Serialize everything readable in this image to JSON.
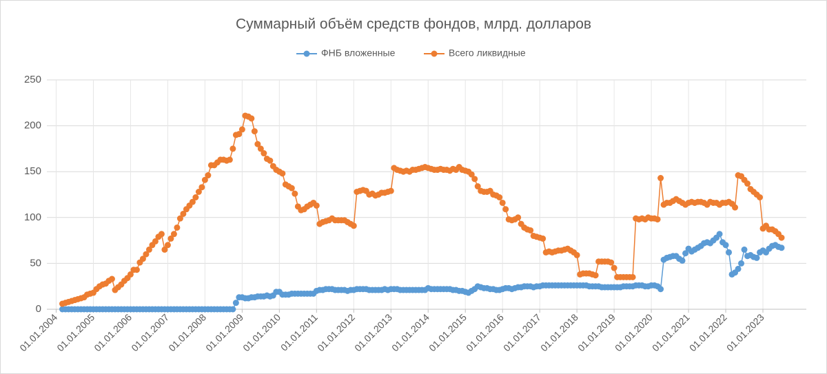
{
  "chart_data": {
    "type": "line",
    "title": "Суммарный объём средств фондов, млрд. долларов",
    "x": [
      "01.03.2004",
      "01.04.2004",
      "01.05.2004",
      "01.06.2004",
      "01.07.2004",
      "01.08.2004",
      "01.09.2004",
      "01.10.2004",
      "01.11.2004",
      "01.12.2004",
      "01.01.2005",
      "01.02.2005",
      "01.03.2005",
      "01.04.2005",
      "01.05.2005",
      "01.06.2005",
      "01.07.2005",
      "01.08.2005",
      "01.09.2005",
      "01.10.2005",
      "01.11.2005",
      "01.12.2005",
      "01.01.2006",
      "01.02.2006",
      "01.03.2006",
      "01.04.2006",
      "01.05.2006",
      "01.06.2006",
      "01.07.2006",
      "01.08.2006",
      "01.09.2006",
      "01.10.2006",
      "01.11.2006",
      "01.12.2006",
      "01.01.2007",
      "01.02.2007",
      "01.03.2007",
      "01.04.2007",
      "01.05.2007",
      "01.06.2007",
      "01.07.2007",
      "01.08.2007",
      "01.09.2007",
      "01.10.2007",
      "01.11.2007",
      "01.12.2007",
      "01.01.2008",
      "01.02.2008",
      "01.03.2008",
      "01.04.2008",
      "01.05.2008",
      "01.06.2008",
      "01.07.2008",
      "01.08.2008",
      "01.09.2008",
      "01.10.2008",
      "01.11.2008",
      "01.12.2008",
      "01.01.2009",
      "01.02.2009",
      "01.03.2009",
      "01.04.2009",
      "01.05.2009",
      "01.06.2009",
      "01.07.2009",
      "01.08.2009",
      "01.09.2009",
      "01.10.2009",
      "01.11.2009",
      "01.12.2009",
      "01.01.2010",
      "01.02.2010",
      "01.03.2010",
      "01.04.2010",
      "01.05.2010",
      "01.06.2010",
      "01.07.2010",
      "01.08.2010",
      "01.09.2010",
      "01.10.2010",
      "01.11.2010",
      "01.12.2010",
      "01.01.2011",
      "01.02.2011",
      "01.03.2011",
      "01.04.2011",
      "01.05.2011",
      "01.06.2011",
      "01.07.2011",
      "01.08.2011",
      "01.09.2011",
      "01.10.2011",
      "01.11.2011",
      "01.12.2011",
      "01.01.2012",
      "01.02.2012",
      "01.03.2012",
      "01.04.2012",
      "01.05.2012",
      "01.06.2012",
      "01.07.2012",
      "01.08.2012",
      "01.09.2012",
      "01.10.2012",
      "01.11.2012",
      "01.12.2012",
      "01.01.2013",
      "01.02.2013",
      "01.03.2013",
      "01.04.2013",
      "01.05.2013",
      "01.06.2013",
      "01.07.2013",
      "01.08.2013",
      "01.09.2013",
      "01.10.2013",
      "01.11.2013",
      "01.12.2013",
      "01.01.2014",
      "01.02.2014",
      "01.03.2014",
      "01.04.2014",
      "01.05.2014",
      "01.06.2014",
      "01.07.2014",
      "01.08.2014",
      "01.09.2014",
      "01.10.2014",
      "01.11.2014",
      "01.12.2014",
      "01.01.2015",
      "01.02.2015",
      "01.03.2015",
      "01.04.2015",
      "01.05.2015",
      "01.06.2015",
      "01.07.2015",
      "01.08.2015",
      "01.09.2015",
      "01.10.2015",
      "01.11.2015",
      "01.12.2015",
      "01.01.2016",
      "01.02.2016",
      "01.03.2016",
      "01.04.2016",
      "01.05.2016",
      "01.06.2016",
      "01.07.2016",
      "01.08.2016",
      "01.09.2016",
      "01.10.2016",
      "01.11.2016",
      "01.12.2016",
      "01.01.2017",
      "01.02.2017",
      "01.03.2017",
      "01.04.2017",
      "01.05.2017",
      "01.06.2017",
      "01.07.2017",
      "01.08.2017",
      "01.09.2017",
      "01.10.2017",
      "01.11.2017",
      "01.12.2017",
      "01.01.2018",
      "01.02.2018",
      "01.03.2018",
      "01.04.2018",
      "01.05.2018",
      "01.06.2018",
      "01.07.2018",
      "01.08.2018",
      "01.09.2018",
      "01.10.2018",
      "01.11.2018",
      "01.12.2018",
      "01.01.2019",
      "01.02.2019",
      "01.03.2019",
      "01.04.2019",
      "01.05.2019",
      "01.06.2019",
      "01.07.2019",
      "01.08.2019",
      "01.09.2019",
      "01.10.2019",
      "01.11.2019",
      "01.12.2019",
      "01.01.2020",
      "01.02.2020",
      "01.03.2020",
      "01.04.2020",
      "01.05.2020",
      "01.06.2020",
      "01.07.2020",
      "01.08.2020",
      "01.09.2020",
      "01.10.2020",
      "01.11.2020",
      "01.12.2020",
      "01.01.2021",
      "01.02.2021",
      "01.03.2021",
      "01.04.2021",
      "01.05.2021",
      "01.06.2021",
      "01.07.2021",
      "01.08.2021",
      "01.09.2021",
      "01.10.2021",
      "01.11.2021",
      "01.12.2021",
      "01.01.2022",
      "01.02.2022",
      "01.03.2022",
      "01.04.2022",
      "01.05.2022",
      "01.06.2022",
      "01.07.2022",
      "01.08.2022",
      "01.09.2022",
      "01.10.2022",
      "01.11.2022",
      "01.12.2022",
      "01.01.2023",
      "01.02.2023",
      "01.03.2023",
      "01.04.2023",
      "01.05.2023",
      "01.06.2023",
      "01.07.2023"
    ],
    "series": [
      {
        "name": "ФНБ вложенные",
        "color": "#5b9bd5",
        "values": [
          0,
          0,
          0,
          0,
          0,
          0,
          0,
          0,
          0,
          0,
          0,
          0,
          0,
          0,
          0,
          0,
          0,
          0,
          0,
          0,
          0,
          0,
          0,
          0,
          0,
          0,
          0,
          0,
          0,
          0,
          0,
          0,
          0,
          0,
          0,
          0,
          0,
          0,
          0,
          0,
          0,
          0,
          0,
          0,
          0,
          0,
          0,
          0,
          0,
          0,
          0,
          0,
          0,
          0,
          0,
          0,
          7,
          13,
          13,
          12,
          12,
          13,
          13,
          14,
          14,
          14,
          15,
          14,
          15,
          19,
          19,
          16,
          16,
          16,
          17,
          17,
          17,
          17,
          17,
          17,
          17,
          17,
          20,
          21,
          21,
          22,
          22,
          22,
          21,
          21,
          21,
          21,
          20,
          21,
          21,
          22,
          22,
          22,
          22,
          21,
          21,
          21,
          21,
          21,
          22,
          21,
          22,
          22,
          22,
          21,
          21,
          21,
          21,
          21,
          21,
          21,
          21,
          21,
          23,
          22,
          22,
          22,
          22,
          22,
          22,
          22,
          21,
          21,
          20,
          20,
          19,
          18,
          20,
          22,
          25,
          24,
          23,
          23,
          22,
          22,
          21,
          21,
          22,
          23,
          23,
          22,
          23,
          24,
          24,
          25,
          25,
          25,
          24,
          25,
          25,
          26,
          26,
          26,
          26,
          26,
          26,
          26,
          26,
          26,
          26,
          26,
          26,
          26,
          26,
          26,
          25,
          25,
          25,
          25,
          24,
          24,
          24,
          24,
          24,
          24,
          24,
          25,
          25,
          25,
          25,
          26,
          26,
          26,
          25,
          25,
          26,
          26,
          25,
          22,
          54,
          56,
          57,
          58,
          58,
          55,
          53,
          61,
          66,
          63,
          65,
          67,
          69,
          72,
          73,
          72,
          75,
          78,
          82,
          73,
          70,
          62,
          38,
          40,
          44,
          50,
          65,
          58,
          59,
          57,
          56,
          62,
          64,
          62,
          66,
          69,
          70,
          68,
          67
        ]
      },
      {
        "name": "Всего ликвидные",
        "color": "#ed7d31",
        "values": [
          6,
          7,
          8,
          9,
          10,
          11,
          12,
          13,
          16,
          17,
          18,
          22,
          25,
          27,
          28,
          31,
          33,
          21,
          24,
          27,
          31,
          34,
          38,
          43,
          43,
          51,
          55,
          60,
          65,
          70,
          74,
          79,
          82,
          65,
          70,
          77,
          82,
          89,
          99,
          104,
          109,
          113,
          117,
          122,
          128,
          133,
          141,
          146,
          157,
          157,
          160,
          163,
          163,
          162,
          163,
          175,
          190,
          191,
          196,
          211,
          210,
          208,
          194,
          180,
          175,
          170,
          164,
          162,
          156,
          152,
          150,
          148,
          136,
          134,
          132,
          126,
          112,
          108,
          109,
          112,
          114,
          116,
          113,
          93,
          95,
          96,
          97,
          99,
          97,
          97,
          97,
          97,
          95,
          93,
          91,
          128,
          129,
          130,
          129,
          125,
          126,
          124,
          125,
          127,
          127,
          128,
          129,
          154,
          152,
          151,
          150,
          151,
          150,
          152,
          152,
          153,
          154,
          155,
          154,
          153,
          152,
          152,
          153,
          152,
          152,
          151,
          153,
          152,
          155,
          152,
          151,
          150,
          147,
          142,
          134,
          129,
          128,
          128,
          129,
          125,
          124,
          122,
          116,
          109,
          98,
          97,
          98,
          100,
          93,
          89,
          87,
          86,
          80,
          79,
          78,
          77,
          62,
          63,
          62,
          63,
          64,
          64,
          65,
          66,
          64,
          62,
          59,
          38,
          39,
          39,
          39,
          38,
          37,
          52,
          52,
          52,
          52,
          51,
          45,
          35,
          35,
          35,
          35,
          35,
          35,
          99,
          98,
          99,
          98,
          100,
          99,
          99,
          98,
          143,
          114,
          116,
          116,
          118,
          120,
          118,
          116,
          114,
          116,
          117,
          116,
          117,
          117,
          116,
          114,
          117,
          116,
          116,
          114,
          116,
          116,
          117,
          115,
          111,
          146,
          145,
          141,
          137,
          131,
          128,
          125,
          122,
          88,
          91,
          87,
          87,
          85,
          82,
          78
        ]
      }
    ],
    "xlim": [
      "01.10.2003",
      "01.03.2024"
    ],
    "xticks": [
      "01.01.2004",
      "01.01.2005",
      "01.01.2006",
      "01.01.2007",
      "01.01.2008",
      "01.01.2009",
      "01.01.2010",
      "01.01.2011",
      "01.01.2012",
      "01.01.2013",
      "01.01.2014",
      "01.01.2015",
      "01.01.2016",
      "01.01.2017",
      "01.01.2018",
      "01.01.2019",
      "01.01.2020",
      "01.01.2021",
      "01.01.2022",
      "01.01.2023"
    ],
    "ylim": [
      0,
      250
    ],
    "yticks": [
      0,
      50,
      100,
      150,
      200,
      250
    ],
    "grid": true,
    "legend": "top"
  }
}
